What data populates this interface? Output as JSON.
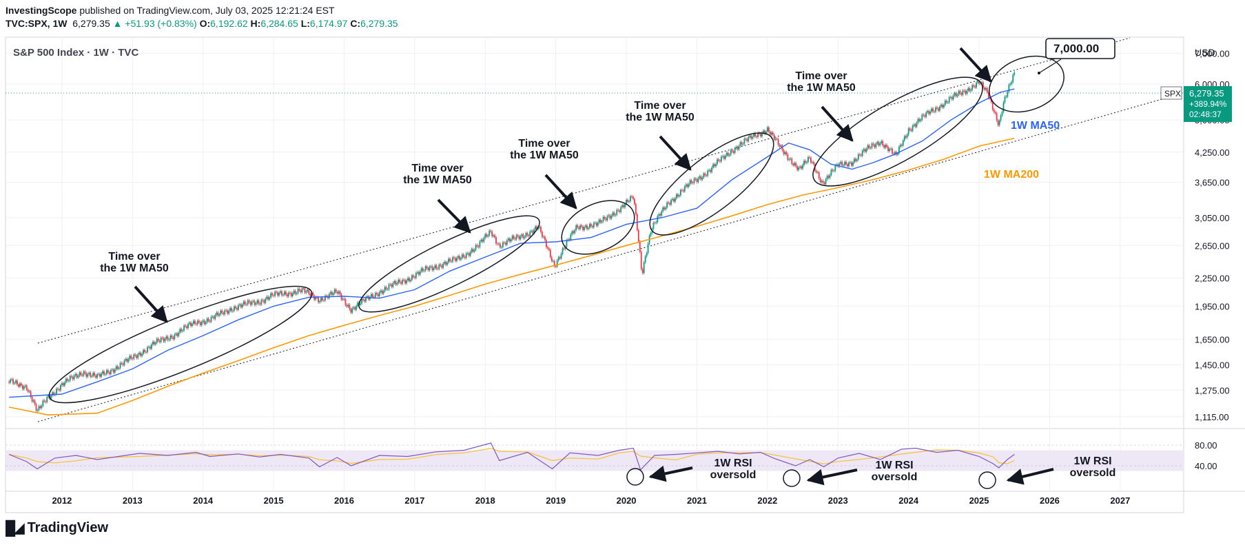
{
  "header": {
    "author": "InvestingScope",
    "published_text": "published on TradingView.com, July 03, 2025 12:21:24 EST",
    "symbol": "TVC:SPX, 1W",
    "price": "6,279.35",
    "change": "+51.93 (+0.83%)",
    "open_label": "O:",
    "open": "6,192.62",
    "high_label": "H:",
    "high": "6,284.65",
    "low_label": "L:",
    "low": "6,174.97",
    "close_label": "C:",
    "close": "6,279.35"
  },
  "legend_title": "S&P 500 Index · 1W · TVC",
  "currency": "USD",
  "price_tag": {
    "ticker": "SPX",
    "price": "6,279.35",
    "change_pct": "+389.94%",
    "countdown": "02:48:37"
  },
  "target_callout": "7,000.00",
  "annotations": {
    "time_over_line1": "Time over",
    "time_over_line2": "the 1W MA50",
    "ma50_label": "1W MA50",
    "ma200_label": "1W MA200",
    "rsi_line1": "1W RSI",
    "rsi_line2": "oversold"
  },
  "colors": {
    "up": "#089981",
    "down": "#f23645",
    "ma50": "#2962ff",
    "ma200": "#ff9800",
    "rsi": "#7e57c2",
    "rsi_ma": "#fbc02d",
    "rsi_band": "#ede7f6",
    "grid": "#eef0f4",
    "text": "#131722"
  },
  "footer": {
    "brand": "TradingView"
  },
  "chart_data": {
    "type": "line",
    "title": "S&P 500 Index · 1W · TVC",
    "y_scale": "log",
    "y_ticks": [
      1115,
      1275,
      1450,
      1650,
      1950,
      2250,
      2650,
      3050,
      3650,
      4250,
      5000,
      6000,
      7000
    ],
    "y_tick_labels": [
      "1,115.00",
      "1,275.00",
      "1,450.00",
      "1,650.00",
      "1,950.00",
      "2,250.00",
      "2,650.00",
      "3,050.00",
      "3,650.00",
      "4,250.00",
      "5,000.00",
      "6,000.00",
      "7,000.00"
    ],
    "x_tick_labels": [
      "2012",
      "2013",
      "2014",
      "2015",
      "2016",
      "2017",
      "2018",
      "2019",
      "2020",
      "2021",
      "2022",
      "2023",
      "2024",
      "2025",
      "2026",
      "2027"
    ],
    "x_range": [
      2011.2,
      2027.9
    ],
    "series": [
      {
        "name": "SPX",
        "x": [
          2011.25,
          2011.5,
          2011.65,
          2011.8,
          2012.0,
          2012.3,
          2012.5,
          2012.8,
          2013.0,
          2013.3,
          2013.6,
          2013.9,
          2014.1,
          2014.4,
          2014.8,
          2015.0,
          2015.4,
          2015.65,
          2015.9,
          2016.1,
          2016.5,
          2016.9,
          2017.2,
          2017.6,
          2017.9,
          2018.08,
          2018.2,
          2018.6,
          2018.75,
          2018.98,
          2019.3,
          2019.6,
          2019.95,
          2020.1,
          2020.22,
          2020.35,
          2020.6,
          2020.9,
          2021.2,
          2021.5,
          2021.8,
          2022.0,
          2022.2,
          2022.45,
          2022.6,
          2022.78,
          2023.0,
          2023.2,
          2023.45,
          2023.6,
          2023.82,
          2024.0,
          2024.3,
          2024.55,
          2024.8,
          2025.0,
          2025.12,
          2025.28,
          2025.35,
          2025.5
        ],
        "values": [
          1330,
          1300,
          1140,
          1230,
          1310,
          1400,
          1360,
          1440,
          1500,
          1610,
          1690,
          1800,
          1820,
          1930,
          2000,
          2060,
          2110,
          2020,
          2090,
          1920,
          2100,
          2240,
          2360,
          2470,
          2640,
          2850,
          2650,
          2820,
          2900,
          2400,
          2910,
          2950,
          3230,
          3380,
          2300,
          2870,
          3300,
          3610,
          3900,
          4300,
          4600,
          4780,
          4300,
          3900,
          4100,
          3640,
          3970,
          4050,
          4350,
          4500,
          4150,
          4770,
          5200,
          5500,
          5800,
          6050,
          5700,
          4900,
          5500,
          6279
        ]
      },
      {
        "name": "1W MA50",
        "x": [
          2011.25,
          2012.0,
          2012.5,
          2013.0,
          2013.5,
          2014.0,
          2014.5,
          2015.0,
          2015.5,
          2016.0,
          2016.5,
          2017.0,
          2017.5,
          2018.0,
          2018.5,
          2019.0,
          2019.5,
          2020.0,
          2020.5,
          2021.0,
          2021.5,
          2022.0,
          2022.3,
          2022.6,
          2022.9,
          2023.2,
          2023.5,
          2023.8,
          2024.2,
          2024.6,
          2025.0,
          2025.3,
          2025.5
        ],
        "values": [
          1230,
          1250,
          1330,
          1420,
          1560,
          1680,
          1820,
          1950,
          2040,
          2050,
          2030,
          2120,
          2330,
          2500,
          2680,
          2700,
          2760,
          2950,
          3050,
          3200,
          3700,
          4150,
          4450,
          4300,
          4000,
          3900,
          4030,
          4200,
          4500,
          5000,
          5450,
          5750,
          5850
        ]
      },
      {
        "name": "1W MA200",
        "x": [
          2011.25,
          2011.8,
          2012.5,
          2013.0,
          2013.5,
          2014.0,
          2014.5,
          2015.0,
          2015.5,
          2016.0,
          2016.5,
          2017.0,
          2017.5,
          2018.0,
          2018.5,
          2019.0,
          2019.5,
          2020.0,
          2020.5,
          2021.0,
          2021.5,
          2022.0,
          2022.5,
          2023.0,
          2023.5,
          2024.0,
          2024.5,
          2025.0,
          2025.5
        ],
        "values": [
          1170,
          1125,
          1135,
          1210,
          1300,
          1390,
          1480,
          1580,
          1680,
          1770,
          1860,
          1950,
          2060,
          2180,
          2290,
          2400,
          2520,
          2650,
          2780,
          2920,
          3080,
          3260,
          3420,
          3550,
          3700,
          3880,
          4100,
          4380,
          4560
        ]
      }
    ],
    "rsi": {
      "name": "RSI",
      "y_ticks": [
        40,
        80
      ],
      "y_tick_labels": [
        "40.00",
        "80.00"
      ],
      "x": [
        2011.25,
        2011.5,
        2011.65,
        2011.9,
        2012.2,
        2012.5,
        2012.8,
        2013.1,
        2013.5,
        2013.9,
        2014.1,
        2014.5,
        2014.8,
        2015.1,
        2015.5,
        2015.65,
        2015.9,
        2016.1,
        2016.5,
        2016.9,
        2017.3,
        2017.7,
        2018.08,
        2018.2,
        2018.6,
        2018.95,
        2019.2,
        2019.6,
        2019.9,
        2020.1,
        2020.2,
        2020.4,
        2020.7,
        2021.0,
        2021.3,
        2021.6,
        2021.9,
        2022.1,
        2022.4,
        2022.6,
        2022.8,
        2023.0,
        2023.3,
        2023.6,
        2023.9,
        2024.1,
        2024.4,
        2024.7,
        2025.0,
        2025.2,
        2025.28,
        2025.4,
        2025.5
      ],
      "values": [
        62,
        48,
        34,
        55,
        60,
        52,
        58,
        64,
        60,
        66,
        58,
        63,
        57,
        62,
        55,
        38,
        56,
        40,
        60,
        58,
        67,
        70,
        84,
        50,
        66,
        34,
        65,
        60,
        70,
        74,
        32,
        60,
        62,
        65,
        68,
        63,
        66,
        54,
        40,
        52,
        38,
        55,
        64,
        52,
        72,
        74,
        66,
        70,
        58,
        44,
        36,
        52,
        62
      ]
    }
  }
}
